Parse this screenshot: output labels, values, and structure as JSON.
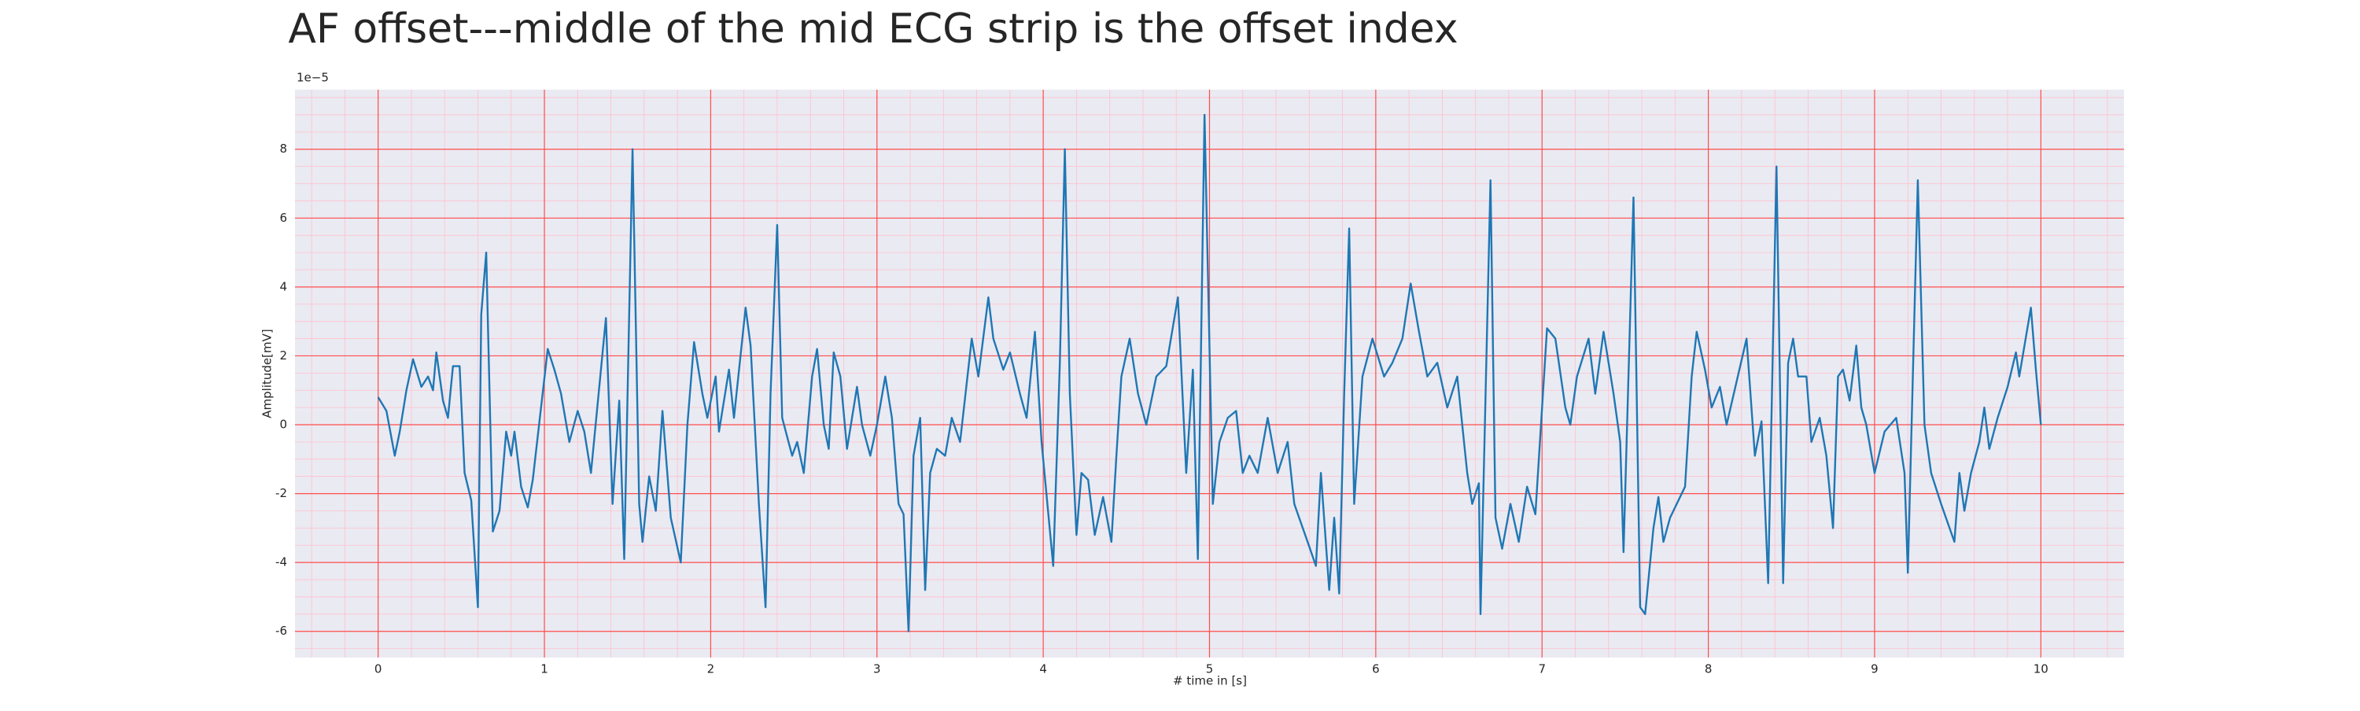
{
  "chart_data": {
    "type": "line",
    "title": "AF offset---middle of the mid ECG strip is the offset index",
    "x_label": "# time in [s]",
    "y_label": "Amplitude[mV]",
    "y_offset_label": "1e−5",
    "xlim": [
      -0.5,
      10.5
    ],
    "ylim": [
      -6.76,
      9.73
    ],
    "xticks": [
      0,
      1,
      2,
      3,
      4,
      5,
      6,
      7,
      8,
      9,
      10
    ],
    "yticks": [
      -6,
      -4,
      -2,
      0,
      2,
      4,
      6,
      8
    ],
    "grid": true,
    "grid_color": "#ff4d4d",
    "minor_grid": true,
    "minor_grid_color": "#ffc0cb",
    "background": "#eaeaf2",
    "x": [
      0.0,
      0.05,
      0.1,
      0.13,
      0.17,
      0.21,
      0.26,
      0.3,
      0.33,
      0.35,
      0.39,
      0.42,
      0.45,
      0.49,
      0.52,
      0.56,
      0.6,
      0.62,
      0.65,
      0.69,
      0.73,
      0.77,
      0.8,
      0.82,
      0.86,
      0.9,
      0.93,
      1.02,
      1.06,
      1.1,
      1.15,
      1.2,
      1.24,
      1.28,
      1.37,
      1.41,
      1.45,
      1.48,
      1.53,
      1.57,
      1.59,
      1.63,
      1.67,
      1.71,
      1.76,
      1.82,
      1.86,
      1.9,
      1.95,
      1.98,
      2.03,
      2.05,
      2.11,
      2.14,
      2.21,
      2.24,
      2.29,
      2.33,
      2.36,
      2.4,
      2.43,
      2.49,
      2.52,
      2.56,
      2.61,
      2.64,
      2.68,
      2.71,
      2.74,
      2.78,
      2.82,
      2.88,
      2.91,
      2.96,
      3.0,
      3.05,
      3.09,
      3.13,
      3.16,
      3.19,
      3.22,
      3.26,
      3.29,
      3.32,
      3.36,
      3.41,
      3.45,
      3.5,
      3.57,
      3.61,
      3.67,
      3.7,
      3.76,
      3.8,
      3.86,
      3.9,
      3.95,
      3.99,
      4.06,
      4.1,
      4.13,
      4.16,
      4.2,
      4.23,
      4.27,
      4.31,
      4.36,
      4.41,
      4.44,
      4.47,
      4.52,
      4.57,
      4.62,
      4.68,
      4.74,
      4.81,
      4.86,
      4.9,
      4.93,
      4.97,
      5.02,
      5.06,
      5.11,
      5.16,
      5.2,
      5.24,
      5.29,
      5.35,
      5.41,
      5.47,
      5.51,
      5.59,
      5.64,
      5.67,
      5.72,
      5.75,
      5.78,
      5.81,
      5.84,
      5.87,
      5.92,
      5.98,
      6.05,
      6.1,
      6.16,
      6.21,
      6.26,
      6.31,
      6.37,
      6.43,
      6.49,
      6.55,
      6.58,
      6.62,
      6.63,
      6.69,
      6.72,
      6.76,
      6.81,
      6.86,
      6.91,
      6.96,
      7.03,
      7.08,
      7.14,
      7.17,
      7.21,
      7.28,
      7.32,
      7.37,
      7.43,
      7.47,
      7.49,
      7.55,
      7.59,
      7.62,
      7.67,
      7.7,
      7.73,
      7.77,
      7.81,
      7.86,
      7.9,
      7.93,
      7.98,
      8.02,
      8.07,
      8.11,
      8.23,
      8.28,
      8.32,
      8.36,
      8.41,
      8.45,
      8.48,
      8.51,
      8.54,
      8.59,
      8.62,
      8.67,
      8.71,
      8.75,
      8.78,
      8.81,
      8.85,
      8.89,
      8.92,
      8.95,
      9.0,
      9.06,
      9.13,
      9.18,
      9.2,
      9.26,
      9.3,
      9.34,
      9.4,
      9.48,
      9.51,
      9.54,
      9.58,
      9.63,
      9.66,
      9.69,
      9.74,
      9.8,
      9.85,
      9.87,
      9.94,
      9.97,
      10.0
    ],
    "series": [
      {
        "color": "#1f77b4",
        "values": [
          0.8,
          0.4,
          -0.9,
          -0.2,
          1.0,
          1.9,
          1.1,
          1.4,
          1.0,
          2.1,
          0.7,
          0.2,
          1.7,
          1.7,
          -1.4,
          -2.2,
          -5.3,
          3.2,
          5.0,
          -3.1,
          -2.5,
          -0.2,
          -0.9,
          -0.2,
          -1.8,
          -2.4,
          -1.6,
          2.2,
          1.6,
          0.9,
          -0.5,
          0.4,
          -0.2,
          -1.4,
          3.1,
          -2.3,
          0.7,
          -3.9,
          8.0,
          -2.3,
          -3.4,
          -1.5,
          -2.5,
          0.4,
          -2.7,
          -4.0,
          0.0,
          2.4,
          0.9,
          0.2,
          1.4,
          -0.2,
          1.6,
          0.2,
          3.4,
          2.3,
          -2.3,
          -5.3,
          0.9,
          5.8,
          0.2,
          -0.9,
          -0.5,
          -1.4,
          1.4,
          2.2,
          0.0,
          -0.7,
          2.1,
          1.4,
          -0.7,
          1.1,
          0.0,
          -0.9,
          0.0,
          1.4,
          0.2,
          -2.3,
          -2.6,
          -6.0,
          -0.9,
          0.2,
          -4.8,
          -1.4,
          -0.7,
          -0.9,
          0.2,
          -0.5,
          2.5,
          1.4,
          3.7,
          2.5,
          1.6,
          2.1,
          0.9,
          0.2,
          2.7,
          -0.5,
          -4.1,
          1.8,
          8.0,
          0.9,
          -3.2,
          -1.4,
          -1.6,
          -3.2,
          -2.1,
          -3.4,
          -0.9,
          1.4,
          2.5,
          0.9,
          0.0,
          1.4,
          1.7,
          3.7,
          -1.4,
          1.6,
          -3.9,
          9.0,
          -2.3,
          -0.5,
          0.2,
          0.4,
          -1.4,
          -0.9,
          -1.4,
          0.2,
          -1.4,
          -0.5,
          -2.3,
          -3.4,
          -4.1,
          -1.4,
          -4.8,
          -2.7,
          -4.9,
          0.9,
          5.7,
          -2.3,
          1.4,
          2.5,
          1.4,
          1.8,
          2.5,
          4.1,
          2.7,
          1.4,
          1.8,
          0.5,
          1.4,
          -1.4,
          -2.3,
          -1.7,
          -5.5,
          7.1,
          -2.7,
          -3.6,
          -2.3,
          -3.4,
          -1.8,
          -2.6,
          2.8,
          2.5,
          0.5,
          0.0,
          1.4,
          2.5,
          0.9,
          2.7,
          0.9,
          -0.5,
          -3.7,
          6.6,
          -5.3,
          -5.5,
          -3.0,
          -2.1,
          -3.4,
          -2.7,
          -2.3,
          -1.8,
          1.4,
          2.7,
          1.6,
          0.5,
          1.1,
          0.0,
          2.5,
          -0.9,
          0.1,
          -4.6,
          7.5,
          -4.6,
          1.8,
          2.5,
          1.4,
          1.4,
          -0.5,
          0.2,
          -0.9,
          -3.0,
          1.4,
          1.6,
          0.7,
          2.3,
          0.5,
          0.0,
          -1.4,
          -0.2,
          0.2,
          -1.4,
          -4.3,
          7.1,
          0.0,
          -1.4,
          -2.3,
          -3.4,
          -1.4,
          -2.5,
          -1.4,
          -0.5,
          0.5,
          -0.7,
          0.2,
          1.1,
          2.1,
          1.4,
          3.4,
          1.6,
          0.0
        ]
      }
    ]
  }
}
